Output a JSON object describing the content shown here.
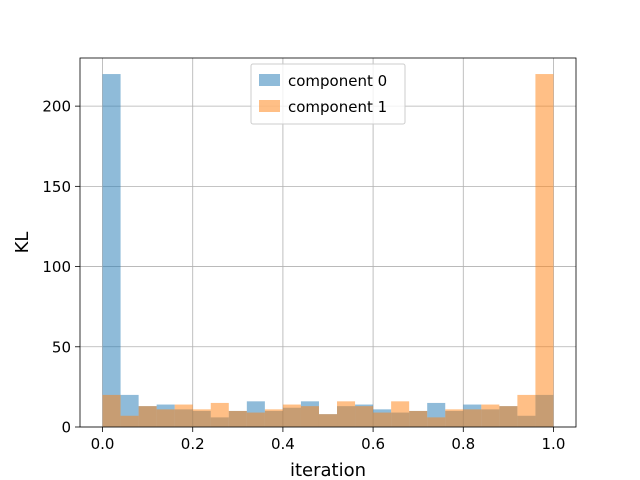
{
  "chart_data": {
    "type": "bar",
    "subtype": "overlaid-histogram",
    "title": "",
    "xlabel": "iteration",
    "ylabel": "KL",
    "xlim": [
      -0.05,
      1.05
    ],
    "ylim": [
      0,
      230
    ],
    "xticks": [
      0.0,
      0.2,
      0.4,
      0.6,
      0.8,
      1.0
    ],
    "xtick_labels": [
      "0.0",
      "0.2",
      "0.4",
      "0.6",
      "0.8",
      "1.0"
    ],
    "yticks": [
      0,
      50,
      100,
      150,
      200
    ],
    "ytick_labels": [
      "0",
      "50",
      "100",
      "150",
      "200"
    ],
    "grid": true,
    "legend": "top-center",
    "bin_width": 0.04,
    "bin_edges": [
      0.0,
      0.04,
      0.08,
      0.12,
      0.16,
      0.2,
      0.24,
      0.28,
      0.32,
      0.36,
      0.4,
      0.44,
      0.48,
      0.52,
      0.56,
      0.6,
      0.64,
      0.68,
      0.72,
      0.76,
      0.8,
      0.84,
      0.88,
      0.92,
      0.96,
      1.0
    ],
    "series": [
      {
        "name": "component 0",
        "color": "#1f77b4",
        "opacity": 0.5,
        "values": [
          220,
          20,
          13,
          14,
          11,
          10,
          6,
          10,
          16,
          10,
          12,
          16,
          8,
          13,
          14,
          11,
          9,
          10,
          15,
          10,
          14,
          11,
          13,
          7,
          20
        ]
      },
      {
        "name": "component 1",
        "color": "#ff7f0e",
        "opacity": 0.5,
        "values": [
          20,
          7,
          13,
          11,
          14,
          11,
          15,
          10,
          9,
          11,
          14,
          13,
          8,
          16,
          13,
          9,
          16,
          10,
          6,
          11,
          11,
          14,
          13,
          20,
          220
        ]
      }
    ]
  }
}
